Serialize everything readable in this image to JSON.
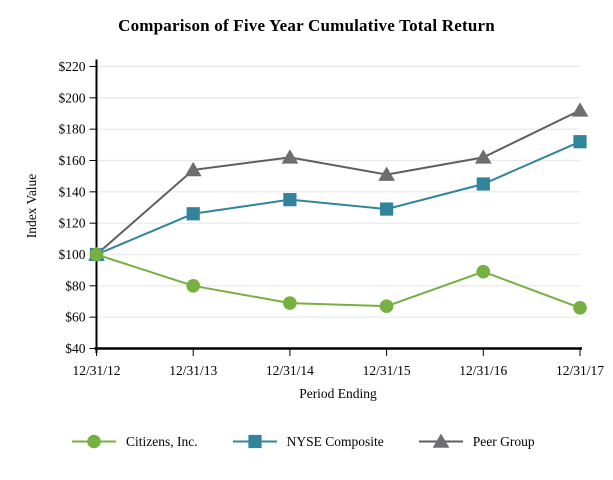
{
  "chart_data": {
    "type": "line",
    "title": "Comparison of Five Year Cumulative Total Return",
    "xlabel": "Period Ending",
    "ylabel": "Index Value",
    "categories": [
      "12/31/12",
      "12/31/13",
      "12/31/14",
      "12/31/15",
      "12/31/16",
      "12/31/17"
    ],
    "y_axis": {
      "min": 40,
      "max": 220,
      "step": 20,
      "tick_prefix": "$"
    },
    "ylim": [
      40,
      220
    ],
    "grid": "horizontal",
    "legend_position": "bottom",
    "series": [
      {
        "name": "Citizens, Inc.",
        "marker": "circle",
        "color": "#76b041",
        "values": [
          100,
          80,
          69,
          67,
          89,
          66
        ]
      },
      {
        "name": "NYSE Composite",
        "marker": "square",
        "color": "#31849b",
        "values": [
          100,
          126,
          135,
          129,
          145,
          172
        ]
      },
      {
        "name": "Peer Group",
        "marker": "triangle",
        "color": "#6d6e71",
        "line_color": "#5c5e60",
        "values": [
          100,
          154,
          162,
          151,
          162,
          192
        ]
      }
    ],
    "colors": {
      "axis": "#000000",
      "gridline": "#e9e9e9",
      "background": "#ffffff"
    }
  }
}
